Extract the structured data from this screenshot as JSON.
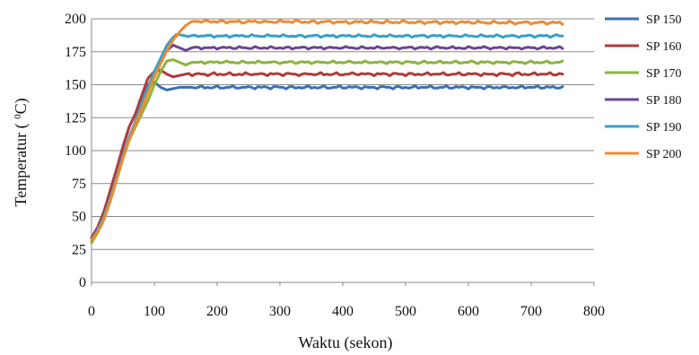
{
  "chart_data": {
    "type": "line",
    "xlabel": "Waktu (sekon)",
    "ylabel": {
      "prefix": "Temperatur ( ",
      "superscript": "0",
      "suffix": "C)"
    },
    "xlim": [
      0,
      800
    ],
    "ylim": [
      0,
      200
    ],
    "xticks": [
      0,
      100,
      200,
      300,
      400,
      500,
      600,
      700,
      800
    ],
    "yticks": [
      0,
      25,
      50,
      75,
      100,
      125,
      150,
      175,
      200
    ],
    "grid": "horizontal",
    "legend_position": "right",
    "series": [
      {
        "name": "SP 150",
        "color": "#3c6fb4",
        "setpoint": 150,
        "points": [
          [
            0,
            34
          ],
          [
            10,
            42
          ],
          [
            20,
            54
          ],
          [
            30,
            70
          ],
          [
            40,
            86
          ],
          [
            50,
            103
          ],
          [
            60,
            118
          ],
          [
            70,
            128
          ],
          [
            80,
            140
          ],
          [
            90,
            150
          ],
          [
            100,
            152
          ],
          [
            110,
            148
          ],
          [
            120,
            146
          ],
          [
            130,
            147
          ],
          [
            140,
            148
          ],
          [
            150,
            148
          ],
          [
            750,
            148
          ]
        ],
        "wiggle": 1.2
      },
      {
        "name": "SP 160",
        "color": "#b23a3a",
        "setpoint": 160,
        "points": [
          [
            0,
            34
          ],
          [
            10,
            42
          ],
          [
            20,
            54
          ],
          [
            30,
            70
          ],
          [
            40,
            86
          ],
          [
            50,
            103
          ],
          [
            60,
            118
          ],
          [
            70,
            128
          ],
          [
            80,
            142
          ],
          [
            90,
            155
          ],
          [
            100,
            160
          ],
          [
            110,
            161
          ],
          [
            120,
            158
          ],
          [
            130,
            156
          ],
          [
            140,
            157
          ],
          [
            150,
            158
          ],
          [
            750,
            158
          ]
        ],
        "wiggle": 1.2
      },
      {
        "name": "SP 170",
        "color": "#8cb43a",
        "setpoint": 170,
        "points": [
          [
            0,
            30
          ],
          [
            10,
            38
          ],
          [
            20,
            48
          ],
          [
            30,
            62
          ],
          [
            40,
            78
          ],
          [
            50,
            94
          ],
          [
            60,
            108
          ],
          [
            70,
            118
          ],
          [
            80,
            128
          ],
          [
            90,
            138
          ],
          [
            100,
            150
          ],
          [
            110,
            160
          ],
          [
            120,
            168
          ],
          [
            130,
            169
          ],
          [
            140,
            167
          ],
          [
            150,
            165
          ],
          [
            160,
            167
          ],
          [
            750,
            167
          ]
        ],
        "wiggle": 1.0
      },
      {
        "name": "SP 180",
        "color": "#6a4690",
        "setpoint": 180,
        "points": [
          [
            0,
            32
          ],
          [
            10,
            40
          ],
          [
            20,
            50
          ],
          [
            30,
            64
          ],
          [
            40,
            80
          ],
          [
            50,
            96
          ],
          [
            60,
            110
          ],
          [
            70,
            122
          ],
          [
            80,
            134
          ],
          [
            90,
            146
          ],
          [
            100,
            158
          ],
          [
            110,
            168
          ],
          [
            120,
            176
          ],
          [
            130,
            180
          ],
          [
            140,
            178
          ],
          [
            150,
            176
          ],
          [
            160,
            178
          ],
          [
            750,
            178
          ]
        ],
        "wiggle": 1.0
      },
      {
        "name": "SP 190",
        "color": "#3aa0c8",
        "setpoint": 190,
        "points": [
          [
            0,
            32
          ],
          [
            10,
            40
          ],
          [
            20,
            50
          ],
          [
            30,
            64
          ],
          [
            40,
            80
          ],
          [
            50,
            96
          ],
          [
            60,
            110
          ],
          [
            70,
            122
          ],
          [
            80,
            136
          ],
          [
            90,
            148
          ],
          [
            100,
            160
          ],
          [
            110,
            170
          ],
          [
            120,
            180
          ],
          [
            130,
            186
          ],
          [
            135,
            188
          ],
          [
            140,
            188
          ],
          [
            150,
            187
          ],
          [
            750,
            187
          ]
        ],
        "wiggle": 1.0
      },
      {
        "name": "SP 200",
        "color": "#f08a30",
        "setpoint": 200,
        "points": [
          [
            0,
            32
          ],
          [
            10,
            38
          ],
          [
            20,
            48
          ],
          [
            30,
            62
          ],
          [
            40,
            78
          ],
          [
            50,
            94
          ],
          [
            60,
            108
          ],
          [
            70,
            120
          ],
          [
            80,
            132
          ],
          [
            90,
            144
          ],
          [
            100,
            156
          ],
          [
            110,
            166
          ],
          [
            120,
            176
          ],
          [
            130,
            184
          ],
          [
            140,
            190
          ],
          [
            150,
            195
          ],
          [
            160,
            198
          ],
          [
            170,
            198
          ],
          [
            750,
            197
          ]
        ],
        "wiggle": 1.2
      }
    ]
  }
}
